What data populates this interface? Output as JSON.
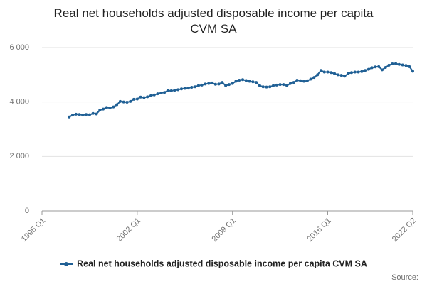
{
  "chart_data": {
    "type": "line",
    "title": "Real net households adjusted disposable income per capita CVM SA",
    "source": "Source:",
    "categories": [
      "1995 Q1",
      null,
      null,
      null,
      null,
      null,
      null,
      null,
      null,
      null,
      null,
      null,
      null,
      null,
      null,
      null,
      null,
      null,
      null,
      null,
      null,
      null,
      null,
      null,
      null,
      null,
      null,
      null,
      "2002 Q1",
      null,
      null,
      null,
      null,
      null,
      null,
      null,
      null,
      null,
      null,
      null,
      null,
      null,
      null,
      null,
      null,
      null,
      null,
      null,
      null,
      null,
      null,
      null,
      null,
      null,
      null,
      null,
      "2009 Q1",
      null,
      null,
      null,
      null,
      null,
      null,
      null,
      null,
      null,
      null,
      null,
      null,
      null,
      null,
      null,
      null,
      null,
      null,
      null,
      null,
      null,
      null,
      null,
      null,
      null,
      null,
      null,
      "2016 Q1",
      null,
      null,
      null,
      null,
      null,
      null,
      null,
      null,
      null,
      null,
      null,
      null,
      null,
      null,
      null,
      null,
      null,
      null,
      null,
      null,
      null,
      null,
      null,
      null,
      "2022 Q2"
    ],
    "series": [
      {
        "name": "Real net households adjusted disposable income per capita CVM SA",
        "color": "#206095",
        "values": [
          null,
          null,
          null,
          null,
          null,
          null,
          null,
          null,
          3450,
          3520,
          3550,
          3540,
          3520,
          3540,
          3530,
          3580,
          3560,
          3700,
          3740,
          3800,
          3780,
          3820,
          3900,
          4020,
          4000,
          3990,
          4020,
          4100,
          4110,
          4180,
          4160,
          4190,
          4230,
          4260,
          4300,
          4330,
          4350,
          4420,
          4410,
          4430,
          4450,
          4480,
          4500,
          4510,
          4540,
          4560,
          4600,
          4620,
          4660,
          4680,
          4700,
          4650,
          4660,
          4720,
          4600,
          4640,
          4680,
          4760,
          4800,
          4820,
          4790,
          4760,
          4740,
          4720,
          4600,
          4560,
          4550,
          4560,
          4600,
          4620,
          4640,
          4640,
          4600,
          4680,
          4720,
          4800,
          4780,
          4760,
          4780,
          4840,
          4900,
          5000,
          5160,
          5100,
          5100,
          5080,
          5040,
          5000,
          4980,
          4950,
          5040,
          5080,
          5100,
          5100,
          5120,
          5160,
          5200,
          5260,
          5290,
          5300,
          5180,
          5270,
          5350,
          5400,
          5410,
          5380,
          5360,
          5340,
          5300,
          5130
        ]
      }
    ],
    "ylim": [
      0,
      6000
    ],
    "yticks": [
      0,
      {
        "value": 2000,
        "label": "2 000"
      },
      {
        "value": 4000,
        "label": "4 000"
      },
      {
        "value": 6000,
        "label": "6 000"
      }
    ],
    "grid": true
  }
}
